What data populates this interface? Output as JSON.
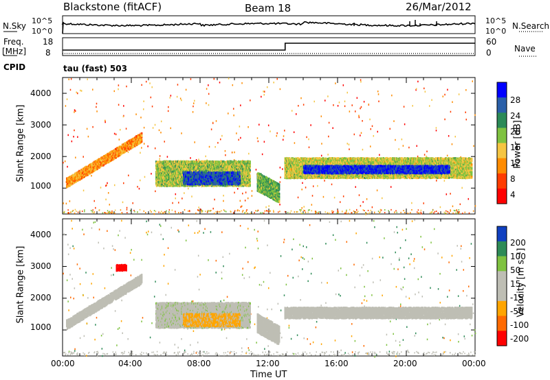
{
  "header": {
    "station": "Blackstone (fitACF)",
    "beam": "Beam 18",
    "date": "26/Mar/2012"
  },
  "top_panel": {
    "left_label": "N.Sky",
    "left_ticks": [
      "10^5",
      "10^0"
    ],
    "right_label": "N.Search",
    "right_ticks": [
      "10^5",
      "10^0"
    ]
  },
  "freq_panel": {
    "left_label_1": "Freq.",
    "left_label_2": "[MHz]",
    "left_ticks": [
      "18",
      "8"
    ],
    "right_label": "Nave",
    "right_ticks": [
      "60",
      "0"
    ]
  },
  "cpid_panel": {
    "label": "CPID",
    "text": "tau (fast) 503"
  },
  "power_panel": {
    "ylabel": "Slant Range [km]",
    "yticks": [
      "4000",
      "3000",
      "2000",
      "1000"
    ],
    "colorbar_label": "Power [dB]",
    "colorbar_ticks": [
      "28",
      "24",
      "20",
      "16",
      "12",
      "8",
      "4"
    ]
  },
  "velocity_panel": {
    "ylabel": "Slant Range [km]",
    "yticks": [
      "4000",
      "3000",
      "2000",
      "1000"
    ],
    "colorbar_label": "Velocity [m s⁻¹]",
    "colorbar_ticks": [
      "200",
      "100",
      "50",
      "15",
      "-15",
      "-50",
      "-100",
      "-200"
    ]
  },
  "x_axis": {
    "ticks": [
      "00:00",
      "04:00",
      "08:00",
      "12:00",
      "16:00",
      "20:00",
      "00:00"
    ],
    "label": "Time UT"
  },
  "colors": {
    "power_scale": [
      "#0000ff",
      "#2a5fa8",
      "#2b8a57",
      "#7fc240",
      "#f5c542",
      "#ff8c00",
      "#ff3c00",
      "#ff0000"
    ],
    "velocity_scale": [
      "#1040c0",
      "#2e8b57",
      "#7fc240",
      "#bebeb4",
      "#bebeb4",
      "#ffa500",
      "#ff6a00",
      "#ff0000"
    ]
  },
  "chart_data": [
    {
      "type": "heatmap",
      "title": "Power",
      "xlabel": "Time UT",
      "ylabel": "Slant Range [km]",
      "xlim": [
        0,
        24
      ],
      "ylim": [
        180,
        4500
      ],
      "clim": [
        0,
        30
      ],
      "bands": [
        {
          "t0": 0.2,
          "t1": 4.6,
          "r0": 1050,
          "r1": 1350,
          "slope": 330,
          "value": 10
        },
        {
          "t0": 5.4,
          "t1": 10.9,
          "r0": 1100,
          "r1": 1900,
          "slope": 0,
          "value": 16
        },
        {
          "t0": 7.0,
          "t1": 10.3,
          "r0": 1150,
          "r1": 1550,
          "slope": 0,
          "value": 25
        },
        {
          "t0": 11.3,
          "t1": 12.6,
          "r0": 950,
          "r1": 1550,
          "slope": -300,
          "value": 18
        },
        {
          "t0": 12.9,
          "t1": 23.8,
          "r0": 1350,
          "r1": 2000,
          "slope": 0,
          "value": 15
        },
        {
          "t0": 14.0,
          "t1": 22.5,
          "r0": 1500,
          "r1": 1750,
          "slope": 0,
          "value": 27
        }
      ]
    },
    {
      "type": "heatmap",
      "title": "Velocity",
      "xlabel": "Time UT",
      "ylabel": "Slant Range [km]",
      "xlim": [
        0,
        24
      ],
      "ylim": [
        180,
        4500
      ],
      "clim": [
        -200,
        200
      ],
      "bands": [
        {
          "t0": 0.2,
          "t1": 4.6,
          "r0": 1050,
          "r1": 1350,
          "slope": 330,
          "value": 0
        },
        {
          "t0": 5.4,
          "t1": 10.9,
          "r0": 1100,
          "r1": 1900,
          "slope": 0,
          "value": 30
        },
        {
          "t0": 7.0,
          "t1": 10.3,
          "r0": 1150,
          "r1": 1550,
          "slope": 0,
          "value": -60
        },
        {
          "t0": 11.3,
          "t1": 12.6,
          "r0": 950,
          "r1": 1550,
          "slope": -300,
          "value": 0
        },
        {
          "t0": 12.9,
          "t1": 23.8,
          "r0": 1400,
          "r1": 1750,
          "slope": 0,
          "value": 0
        },
        {
          "t0": 3.1,
          "t1": 3.7,
          "r0": 2900,
          "r1": 3100,
          "slope": 0,
          "value": -200
        }
      ]
    }
  ]
}
